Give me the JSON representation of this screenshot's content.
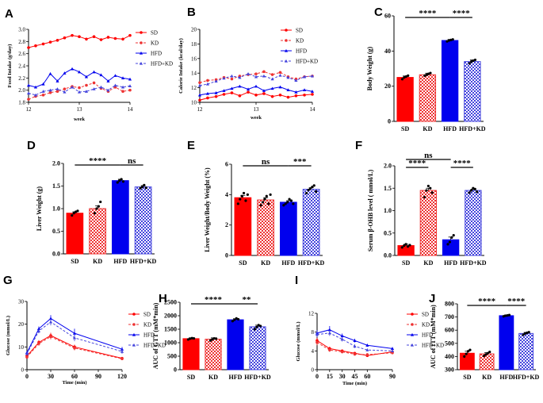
{
  "panel_labels": [
    "A",
    "B",
    "C",
    "D",
    "E",
    "F",
    "G",
    "H",
    "I",
    "J"
  ],
  "colors": {
    "SD": "#ff0000",
    "KD": "#ee3333",
    "HFD": "#0000ee",
    "HFD+KD": "#4444dd"
  },
  "chart_data": [
    {
      "id": "A",
      "type": "line",
      "ylabel": "Food Intake (g/day)",
      "xlabel": "week",
      "xlim": [
        12,
        14
      ],
      "ylim": [
        1.8,
        3.0
      ],
      "xticks": [
        "12",
        "13",
        "14"
      ],
      "yticks": [
        "1.8",
        "2.0",
        "2.2",
        "2.4",
        "2.6",
        "2.8",
        "3.0"
      ],
      "x": [
        12,
        12.14,
        12.29,
        12.43,
        12.57,
        12.71,
        12.86,
        13.0,
        13.14,
        13.29,
        13.43,
        13.57,
        13.71,
        13.86,
        14.0
      ],
      "series": [
        {
          "name": "SD",
          "marker": "circle",
          "dashed": false,
          "values": [
            2.7,
            2.73,
            2.76,
            2.79,
            2.82,
            2.86,
            2.9,
            2.88,
            2.84,
            2.88,
            2.83,
            2.87,
            2.85,
            2.84,
            2.9
          ]
        },
        {
          "name": "KD",
          "marker": "circle",
          "dashed": true,
          "values": [
            1.85,
            1.9,
            1.92,
            1.96,
            1.98,
            2.02,
            2.06,
            2.04,
            2.08,
            2.12,
            2.03,
            1.98,
            2.05,
            1.98,
            2.0
          ]
        },
        {
          "name": "HFD",
          "marker": "triangle",
          "dashed": false,
          "values": [
            2.08,
            2.05,
            2.1,
            2.27,
            2.15,
            2.28,
            2.35,
            2.3,
            2.22,
            2.3,
            2.25,
            2.15,
            2.24,
            2.2,
            2.18
          ]
        },
        {
          "name": "HFD+KD",
          "marker": "triangle",
          "dashed": true,
          "values": [
            1.95,
            1.92,
            1.98,
            2.0,
            2.02,
            1.97,
            2.05,
            1.97,
            1.98,
            2.02,
            2.05,
            2.0,
            2.08,
            2.05,
            2.07
          ]
        }
      ]
    },
    {
      "id": "B",
      "type": "line",
      "ylabel": "Calorie Intake (kcal/day)",
      "xlabel": "week",
      "xlim": [
        12,
        14
      ],
      "ylim": [
        10,
        20
      ],
      "xticks": [
        "12",
        "13",
        "14"
      ],
      "yticks": [
        "10",
        "12",
        "14",
        "16",
        "18",
        "20"
      ],
      "x": [
        12,
        12.14,
        12.29,
        12.43,
        12.57,
        12.71,
        12.86,
        13.0,
        13.14,
        13.29,
        13.43,
        13.57,
        13.71,
        13.86,
        14.0
      ],
      "series": [
        {
          "name": "SD",
          "marker": "circle",
          "dashed": false,
          "values": [
            10.3,
            10.6,
            10.8,
            11.1,
            11.3,
            10.9,
            11.4,
            11.0,
            11.2,
            10.8,
            11.0,
            10.7,
            10.9,
            11.0,
            11.1
          ]
        },
        {
          "name": "KD",
          "marker": "circle",
          "dashed": true,
          "values": [
            12.7,
            13.0,
            13.1,
            13.4,
            13.2,
            13.6,
            13.8,
            13.9,
            14.2,
            13.8,
            14.1,
            13.5,
            13.2,
            13.5,
            13.6
          ]
        },
        {
          "name": "HFD",
          "marker": "triangle",
          "dashed": false,
          "values": [
            11.0,
            11.2,
            11.3,
            11.6,
            11.9,
            12.2,
            11.8,
            12.2,
            11.6,
            11.9,
            12.1,
            11.7,
            11.4,
            11.7,
            11.5
          ]
        },
        {
          "name": "HFD+KD",
          "marker": "triangle",
          "dashed": true,
          "values": [
            12.3,
            12.5,
            12.9,
            13.3,
            13.6,
            13.4,
            13.9,
            13.5,
            13.6,
            13.2,
            13.7,
            13.4,
            13.0,
            13.5,
            13.6
          ]
        }
      ]
    },
    {
      "id": "C",
      "type": "bar",
      "ylabel": "Body Weight (g)",
      "categories": [
        "SD",
        "KD",
        "HFD",
        "HFD+KD"
      ],
      "ylim": [
        0,
        60
      ],
      "yticks": [
        "0",
        "20",
        "40",
        "60"
      ],
      "values": [
        25,
        26.5,
        46,
        34
      ],
      "errors": [
        0.8,
        0.9,
        0.6,
        0.9
      ],
      "points": [
        [
          24,
          25,
          25.5,
          26
        ],
        [
          26,
          26.5,
          27,
          27.5
        ],
        [
          45.5,
          46,
          46.3,
          46.6
        ],
        [
          33,
          34,
          34.5,
          35
        ]
      ],
      "significance": [
        {
          "from": 0,
          "to": 2,
          "label": "****",
          "level": 0
        },
        {
          "from": 2,
          "to": 3,
          "label": "****",
          "level": 0
        }
      ]
    },
    {
      "id": "D",
      "type": "bar",
      "ylabel": "Liver Weight (g)",
      "categories": [
        "SD",
        "KD",
        "HFD",
        "HFD+KD"
      ],
      "ylim": [
        0,
        2.0
      ],
      "yticks": [
        "0.0",
        "0.5",
        "1.0",
        "1.5",
        "2.0"
      ],
      "values": [
        0.9,
        1.0,
        1.62,
        1.48
      ],
      "errors": [
        0.03,
        0.06,
        0.03,
        0.03
      ],
      "points": [
        [
          0.85,
          0.9,
          0.93,
          0.95
        ],
        [
          0.9,
          1.0,
          1.05,
          1.15
        ],
        [
          1.58,
          1.62,
          1.65,
          1.6
        ],
        [
          1.45,
          1.48,
          1.52,
          1.46
        ]
      ],
      "significance": [
        {
          "from": 0,
          "to": 2,
          "label": "****",
          "level": 0
        },
        {
          "from": 2,
          "to": 3,
          "label": "ns",
          "level": 0
        }
      ]
    },
    {
      "id": "E",
      "type": "bar",
      "ylabel": "Liver Weight/Body Weight (%)",
      "categories": [
        "SD",
        "KD",
        "HFD",
        "HFD+KD"
      ],
      "ylim": [
        0,
        6
      ],
      "yticks": [
        "0",
        "2",
        "4",
        "6"
      ],
      "values": [
        3.8,
        3.65,
        3.5,
        4.35
      ],
      "errors": [
        0.15,
        0.15,
        0.1,
        0.1
      ],
      "points": [
        [
          3.4,
          3.7,
          3.9,
          4.1,
          3.6,
          4.0
        ],
        [
          3.3,
          3.5,
          3.7,
          3.9,
          3.4,
          4.0
        ],
        [
          3.3,
          3.4,
          3.5,
          3.7,
          3.6,
          3.4
        ],
        [
          4.1,
          4.3,
          4.4,
          4.5,
          4.6,
          4.2
        ]
      ],
      "significance": [
        {
          "from": 0,
          "to": 2,
          "label": "ns",
          "level": 0
        },
        {
          "from": 2,
          "to": 3,
          "label": "***",
          "level": 0
        }
      ]
    },
    {
      "id": "F",
      "type": "bar",
      "ylabel": "Serum β-OHB level ( mmol/L)",
      "categories": [
        "SD",
        "KD",
        "HFD",
        "HFD+KD"
      ],
      "ylim": [
        0,
        2.0
      ],
      "yticks": [
        "0.0",
        "0.5",
        "1.0",
        "1.5",
        "2.0"
      ],
      "values": [
        0.22,
        1.45,
        0.35,
        1.45
      ],
      "errors": [
        0.03,
        0.05,
        0.06,
        0.03
      ],
      "points": [
        [
          0.18,
          0.22,
          0.25,
          0.2,
          0.23
        ],
        [
          1.3,
          1.45,
          1.55,
          1.5,
          1.4
        ],
        [
          0.25,
          0.3,
          0.4,
          0.45
        ],
        [
          1.4,
          1.45,
          1.5,
          1.48,
          1.42
        ]
      ],
      "significance": [
        {
          "from": 0,
          "to": 2,
          "label": "ns",
          "level": 1
        },
        {
          "from": 0,
          "to": 1,
          "label": "****",
          "level": 0
        },
        {
          "from": 2,
          "to": 3,
          "label": "****",
          "level": 0
        }
      ]
    },
    {
      "id": "G",
      "type": "line",
      "ylabel": "Glucose (mmol/L)",
      "xlabel": "Time (min)",
      "xlim": [
        0,
        120
      ],
      "ylim": [
        0,
        30
      ],
      "xticks": [
        "0",
        "30",
        "60",
        "90",
        "120"
      ],
      "yticks": [
        "0",
        "10",
        "20",
        "30"
      ],
      "x": [
        0,
        15,
        30,
        60,
        120
      ],
      "series": [
        {
          "name": "SD",
          "marker": "circle",
          "dashed": false,
          "values": [
            6,
            12,
            15,
            10,
            5
          ],
          "errors": [
            0.5,
            1,
            1.2,
            1,
            0.5
          ]
        },
        {
          "name": "KD",
          "marker": "circle",
          "dashed": true,
          "values": [
            5.5,
            11.5,
            14.5,
            9.5,
            4.8
          ],
          "errors": [
            0.5,
            1,
            1.2,
            1,
            0.5
          ]
        },
        {
          "name": "HFD",
          "marker": "triangle",
          "dashed": false,
          "values": [
            7.5,
            18,
            22.5,
            16,
            9
          ],
          "errors": [
            0.6,
            1,
            1.5,
            2,
            1
          ]
        },
        {
          "name": "HFD+KD",
          "marker": "triangle",
          "dashed": true,
          "values": [
            7,
            17,
            21,
            14,
            8
          ],
          "errors": [
            0.6,
            1,
            1.5,
            1.5,
            1
          ]
        }
      ]
    },
    {
      "id": "H",
      "type": "bar",
      "ylabel": "AUC of GTT (mM*min)",
      "categories": [
        "SD",
        "KD",
        "HFD",
        "HFD+KD"
      ],
      "ylim": [
        0,
        2500
      ],
      "yticks": [
        "0",
        "500",
        "1000",
        "1500",
        "2000",
        "2500"
      ],
      "values": [
        1150,
        1130,
        1850,
        1590
      ],
      "errors": [
        30,
        50,
        40,
        60
      ],
      "points": [
        [
          1120,
          1150,
          1170,
          1160
        ],
        [
          1080,
          1120,
          1160,
          1150
        ],
        [
          1800,
          1850,
          1900,
          1870
        ],
        [
          1500,
          1580,
          1650,
          1620
        ]
      ],
      "significance": [
        {
          "from": 0,
          "to": 2,
          "label": "****",
          "level": 0
        },
        {
          "from": 2,
          "to": 3,
          "label": "**",
          "level": 0
        }
      ]
    },
    {
      "id": "I",
      "type": "line",
      "ylabel": "Glucose (mmol/L)",
      "xlabel": "Time (min)",
      "xlim": [
        0,
        90
      ],
      "ylim": [
        0,
        12
      ],
      "xticks": [
        "0",
        "15",
        "30",
        "45",
        "60",
        "90"
      ],
      "yticks": [
        "0",
        "4",
        "8",
        "12"
      ],
      "x": [
        0,
        15,
        30,
        45,
        60,
        90
      ],
      "series": [
        {
          "name": "SD",
          "marker": "circle",
          "dashed": false,
          "values": [
            6.2,
            4.5,
            4.0,
            3.5,
            3.0,
            3.8
          ],
          "errors": [
            0.6,
            0.4,
            0.3,
            0.3,
            0.3,
            0.3
          ]
        },
        {
          "name": "KD",
          "marker": "circle",
          "dashed": true,
          "values": [
            5.8,
            4.2,
            3.8,
            3.3,
            3.2,
            3.6
          ],
          "errors": [
            0.6,
            0.4,
            0.3,
            0.3,
            0.3,
            0.3
          ]
        },
        {
          "name": "HFD",
          "marker": "triangle",
          "dashed": false,
          "values": [
            7.8,
            8.5,
            7.2,
            6.2,
            5.2,
            4.5
          ],
          "errors": [
            0.6,
            0.8,
            0.5,
            0.4,
            0.3,
            0.3
          ]
        },
        {
          "name": "HFD+KD",
          "marker": "triangle",
          "dashed": true,
          "values": [
            7.5,
            7.8,
            6.5,
            5.0,
            4.2,
            4.0
          ],
          "errors": [
            0.6,
            0.6,
            0.5,
            0.4,
            0.3,
            0.3
          ]
        }
      ]
    },
    {
      "id": "J",
      "type": "bar",
      "ylabel": "AUC of ITT (mM*min)",
      "categories": [
        "SD",
        "KD",
        "HFD",
        "HFD+KD"
      ],
      "ylim": [
        300,
        800
      ],
      "yticks": [
        "300",
        "400",
        "500",
        "600",
        "700",
        "800"
      ],
      "values": [
        425,
        420,
        710,
        575
      ],
      "errors": [
        15,
        10,
        5,
        8
      ],
      "points": [
        [
          400,
          420,
          440,
          450
        ],
        [
          405,
          415,
          425,
          435
        ],
        [
          705,
          710,
          712,
          715
        ],
        [
          565,
          575,
          580,
          585
        ]
      ],
      "significance": [
        {
          "from": 0,
          "to": 2,
          "label": "****",
          "level": 0
        },
        {
          "from": 2,
          "to": 3,
          "label": "****",
          "level": 0
        }
      ]
    }
  ]
}
